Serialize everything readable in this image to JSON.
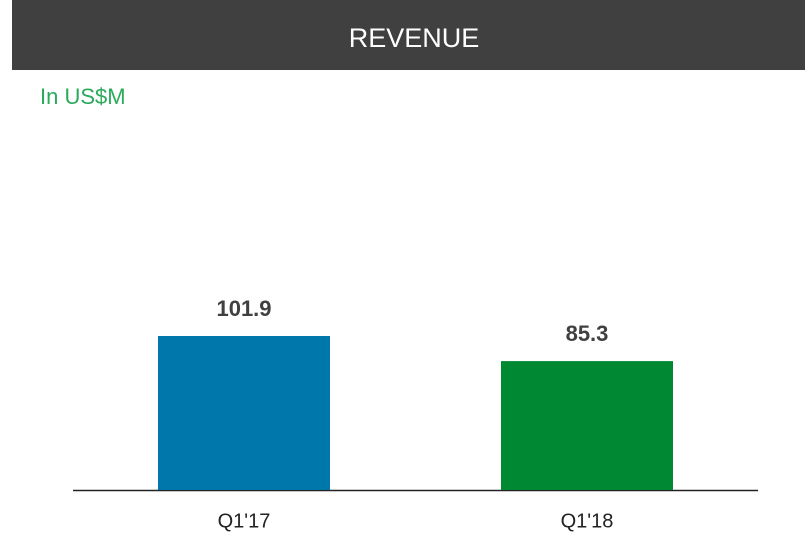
{
  "chart_data": {
    "type": "bar",
    "title": "REVENUE",
    "subtitle": "In US$M",
    "categories": [
      "Q1'17",
      "Q1'18"
    ],
    "values": [
      101.9,
      85.3
    ],
    "colors": [
      "#0077aa",
      "#008833"
    ]
  }
}
